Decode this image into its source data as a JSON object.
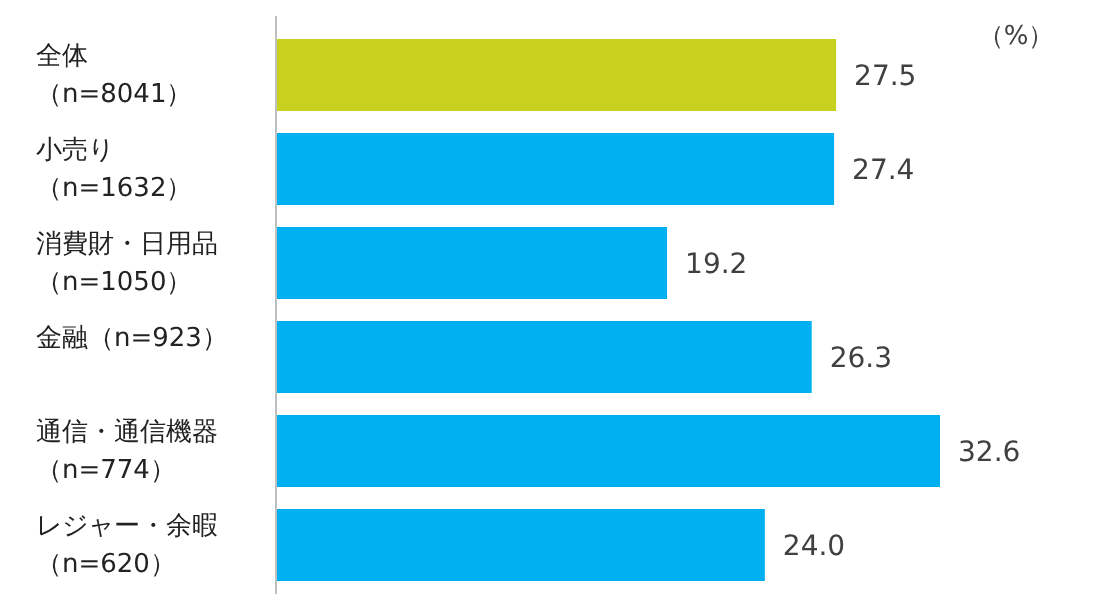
{
  "chart_data": {
    "type": "bar",
    "orientation": "horizontal",
    "categories": [
      "全体（n=8041）",
      "小売り（n=1632）",
      "消費財・日用品（n=1050）",
      "金融（n=923）",
      "通信・通信機器（n=774）",
      "レジャー・余暇（n=620）"
    ],
    "values": [
      27.5,
      27.4,
      19.2,
      26.3,
      32.6,
      24.0
    ],
    "value_labels": [
      "27.5",
      "27.4",
      "19.2",
      "26.3",
      "32.6",
      "24.0"
    ],
    "colors": [
      "#c8d21e",
      "#00b0f0",
      "#00b0f0",
      "#00b0f0",
      "#00b0f0",
      "#00b0f0"
    ],
    "annotations": [
      "（%）"
    ]
  }
}
